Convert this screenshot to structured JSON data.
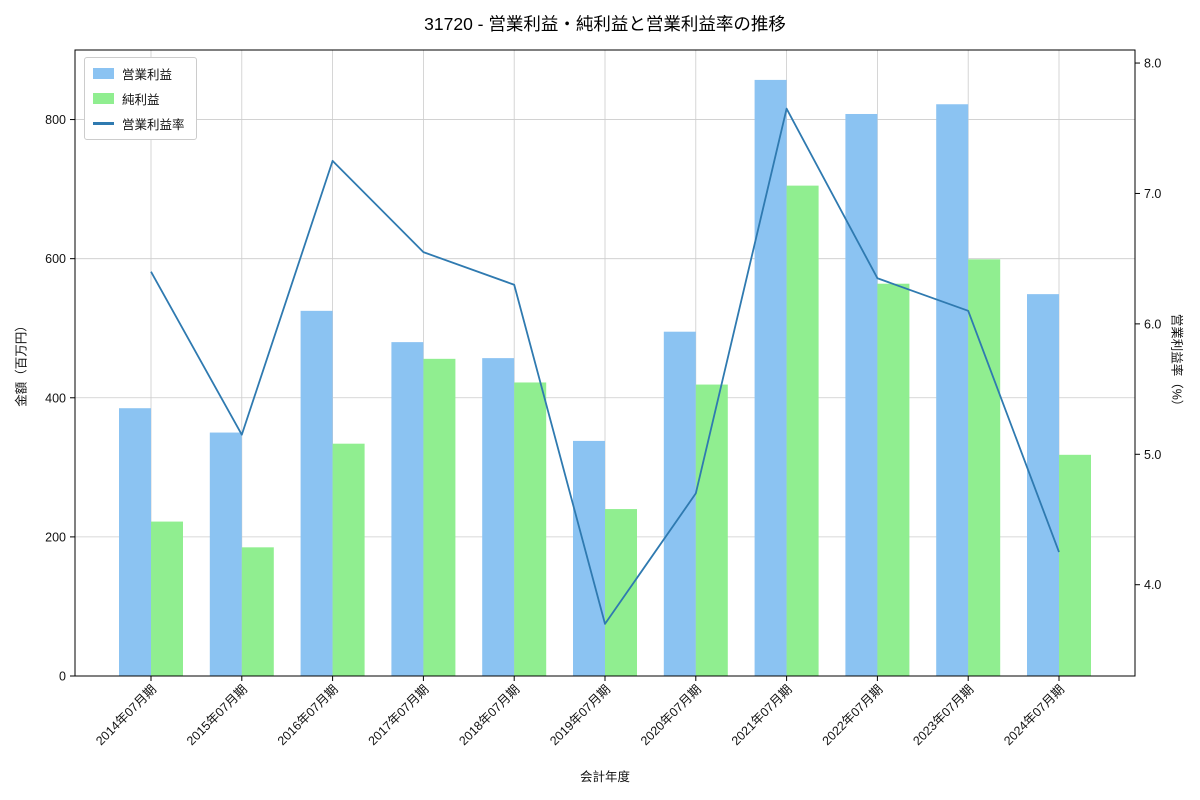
{
  "chart_data": {
    "type": "bar",
    "title": "31720 - 営業利益・純利益と営業利益率の推移",
    "xlabel": "会計年度",
    "ylabel_left": "金額（百万円）",
    "ylabel_right": "営業利益率（%）",
    "categories": [
      "2014年07月期",
      "2015年07月期",
      "2016年07月期",
      "2017年07月期",
      "2018年07月期",
      "2019年07月期",
      "2020年07月期",
      "2021年07月期",
      "2022年07月期",
      "2023年07月期",
      "2024年07月期"
    ],
    "series": [
      {
        "name": "営業利益",
        "type": "bar",
        "axis": "left",
        "color": "#8bc3f2",
        "values": [
          385,
          350,
          525,
          480,
          457,
          338,
          495,
          857,
          808,
          822,
          549
        ]
      },
      {
        "name": "純利益",
        "type": "bar",
        "axis": "left",
        "color": "#90ee90",
        "values": [
          222,
          185,
          334,
          456,
          422,
          240,
          419,
          705,
          564,
          599,
          318
        ]
      },
      {
        "name": "営業利益率",
        "type": "line",
        "axis": "right",
        "color": "#2f7ab0",
        "values": [
          6.4,
          5.15,
          7.25,
          6.55,
          6.3,
          3.7,
          4.7,
          7.65,
          6.35,
          6.1,
          4.25
        ]
      }
    ],
    "ylim_left": [
      0,
      900
    ],
    "ylim_right": [
      3.3,
      8.1
    ],
    "yticks_left": [
      0,
      200,
      400,
      600,
      800
    ],
    "yticks_right": [
      4.0,
      5.0,
      6.0,
      7.0,
      8.0
    ],
    "grid": true,
    "legend_position": "upper-left",
    "grid_color": "#cccccc"
  }
}
